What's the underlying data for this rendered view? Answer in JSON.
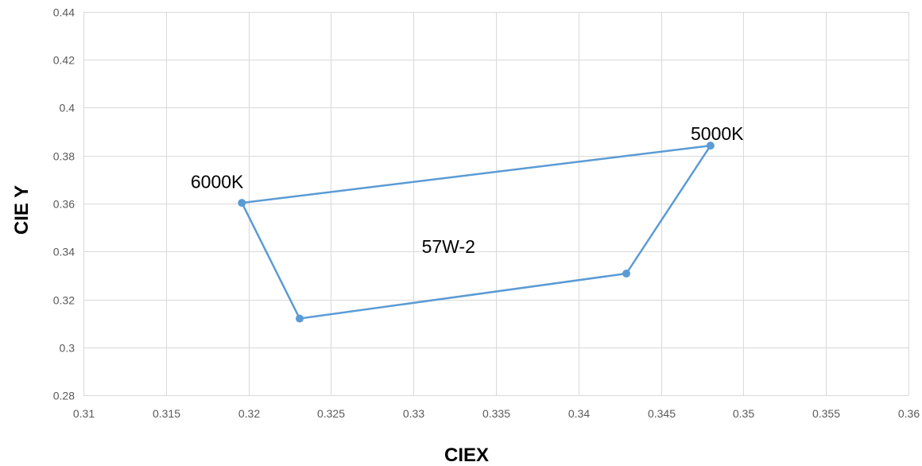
{
  "chart_data": {
    "type": "scatter",
    "title": "",
    "xlabel": "CIEX",
    "ylabel": "CIE Y",
    "xlim": [
      0.31,
      0.36
    ],
    "ylim": [
      0.28,
      0.44
    ],
    "x_ticks": [
      "0.31",
      "0.315",
      "0.32",
      "0.325",
      "0.33",
      "0.335",
      "0.34",
      "0.345",
      "0.35",
      "0.355",
      "0.36"
    ],
    "y_ticks": [
      "0.28",
      "0.3",
      "0.32",
      "0.34",
      "0.36",
      "0.38",
      "0.4",
      "0.42",
      "0.44"
    ],
    "grid": true,
    "legend": "none",
    "series": [
      {
        "color": "#5b9bd5",
        "connected": true,
        "closed": true,
        "points": [
          {
            "x": 0.3196,
            "y": 0.3603
          },
          {
            "x": 0.348,
            "y": 0.3842
          },
          {
            "x": 0.3429,
            "y": 0.3308
          },
          {
            "x": 0.3231,
            "y": 0.312
          }
        ]
      }
    ],
    "annotations": [
      {
        "text": "6000K",
        "x": 0.3165,
        "y": 0.3665
      },
      {
        "text": "5000K",
        "x": 0.3468,
        "y": 0.3865
      },
      {
        "text": "57W-2",
        "x": 0.3305,
        "y": 0.3395
      }
    ]
  }
}
